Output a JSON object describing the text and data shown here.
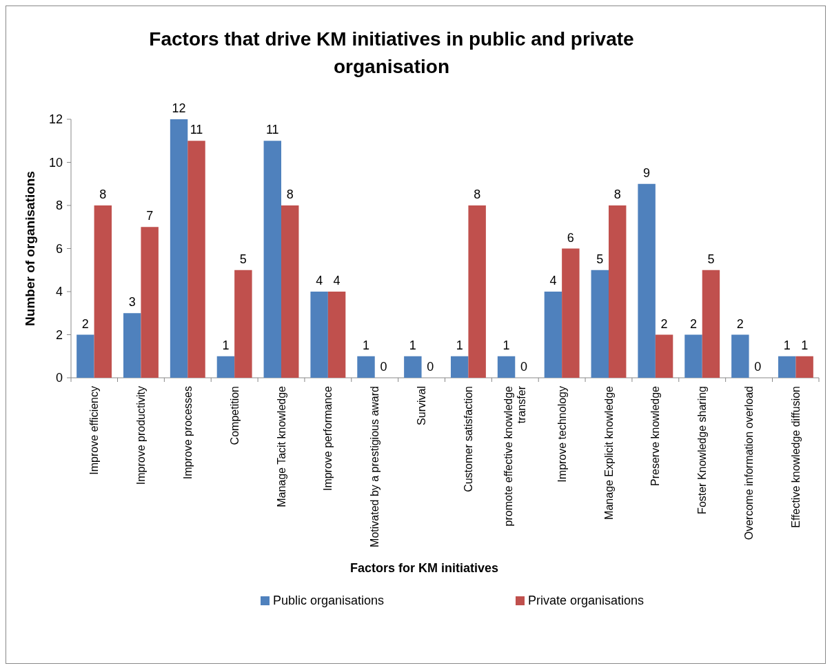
{
  "chart_data": {
    "type": "bar",
    "title": "Factors that drive KM initiatives in public and private organisation",
    "xlabel": "Factors for KM initiatives",
    "ylabel": "Number of organisations",
    "categories": [
      "Improve efficiency",
      "Improve productivity",
      "Improve processes",
      "Competition",
      "Manage Tacit knowledge",
      "Improve performance",
      "Motivated by a prestigious award",
      "Survival",
      "Customer satisfaction",
      "promote effective knowledge transfer",
      "Improve technology",
      "Manage Explicit knowledge",
      "Preserve knowledge",
      "Foster Knowledge sharing",
      "Overcome information overload",
      "Effective knowledge diffusion"
    ],
    "series": [
      {
        "name": "Public organisations",
        "color": "#4f81bd",
        "values": [
          2,
          3,
          12,
          1,
          11,
          4,
          1,
          1,
          1,
          1,
          4,
          5,
          9,
          2,
          2,
          1
        ]
      },
      {
        "name": "Private organisations",
        "color": "#c0504d",
        "values": [
          8,
          7,
          11,
          5,
          8,
          4,
          0,
          0,
          8,
          0,
          6,
          8,
          2,
          5,
          0,
          1
        ]
      }
    ],
    "ylim": [
      0,
      12
    ],
    "yticks": [
      0,
      2,
      4,
      6,
      8,
      10,
      12
    ],
    "grid": false,
    "legend": "bottom",
    "data_labels": true
  }
}
